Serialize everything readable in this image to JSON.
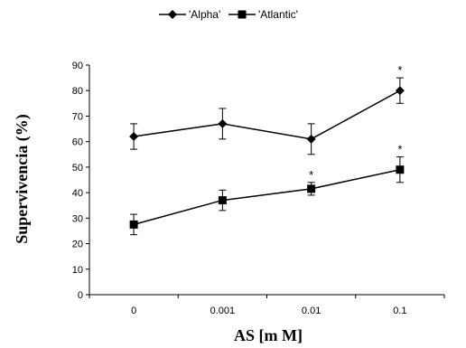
{
  "chart_data": {
    "type": "line",
    "title": "",
    "xlabel": "AS [m M]",
    "ylabel": "Supervivencia (%)",
    "categories": [
      "0",
      "0.001",
      "0.01",
      "0.1"
    ],
    "ylim": [
      0,
      90
    ],
    "yticks": [
      "0",
      "10",
      "20",
      "30",
      "40",
      "50",
      "60",
      "70",
      "80",
      "90"
    ],
    "grid": false,
    "legend": "top-center",
    "series": [
      {
        "name": "'Alpha'",
        "marker": "diamond",
        "values": [
          62,
          67,
          61,
          80
        ],
        "errors": [
          5,
          6,
          6,
          5
        ],
        "significance": [
          "",
          "",
          "",
          "*"
        ]
      },
      {
        "name": "'Atlantic'",
        "marker": "square",
        "values": [
          27.5,
          37,
          41.5,
          49
        ],
        "errors": [
          4,
          4,
          2.5,
          5
        ],
        "significance": [
          "",
          "",
          "*",
          "*"
        ]
      }
    ]
  }
}
